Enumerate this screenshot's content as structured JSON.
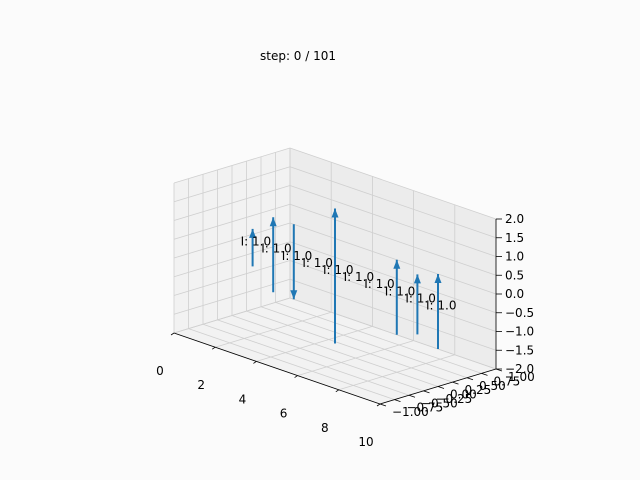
{
  "title": "step: 0  /  101",
  "chart_data": {
    "type": "quiver3d",
    "title": "step: 0  /  101",
    "xlim": [
      0,
      10
    ],
    "ylim": [
      -1.0,
      1.0
    ],
    "zlim": [
      -2.0,
      2.0
    ],
    "x_ticks": [
      "0",
      "2",
      "4",
      "6",
      "8",
      "10"
    ],
    "y_ticks": [
      "−1.00",
      "−0.75",
      "−0.50",
      "−0.25",
      "0.00",
      "0.25",
      "0.50",
      "0.75",
      "1.00"
    ],
    "z_ticks": [
      "−2.0",
      "−1.5",
      "−1.0",
      "−0.5",
      "0.0",
      "0.5",
      "1.0",
      "1.5",
      "2.0"
    ],
    "grid": true,
    "arrow_color": "#1f77b4",
    "arrows": [
      {
        "x": 1,
        "label": "I: 1.0",
        "u": 0,
        "v": 0,
        "w": 0.5
      },
      {
        "x": 2,
        "label": "I: 1.0",
        "u": 0,
        "v": 0,
        "w": 1.0
      },
      {
        "x": 3,
        "label": "I: 1.0",
        "u": 0,
        "v": 0,
        "w": -1.0
      },
      {
        "x": 4,
        "label": "I: 1.0",
        "u": 0,
        "v": 0,
        "w": 0.0
      },
      {
        "x": 5,
        "label": "I: 1.0",
        "u": 0,
        "v": 0,
        "w": 1.8
      },
      {
        "x": 6,
        "label": "I: 1.0",
        "u": 0,
        "v": 0,
        "w": 0.0
      },
      {
        "x": 7,
        "label": "I: 1.0",
        "u": 0,
        "v": 0,
        "w": 0.0
      },
      {
        "x": 8,
        "label": "I: 1.0",
        "u": 0,
        "v": 0,
        "w": 1.0
      },
      {
        "x": 9,
        "label": "I: 1.0",
        "u": 0,
        "v": 0,
        "w": 0.8
      },
      {
        "x": 10,
        "label": "I: 1.0",
        "u": 0,
        "v": 0,
        "w": 1.0
      }
    ]
  }
}
